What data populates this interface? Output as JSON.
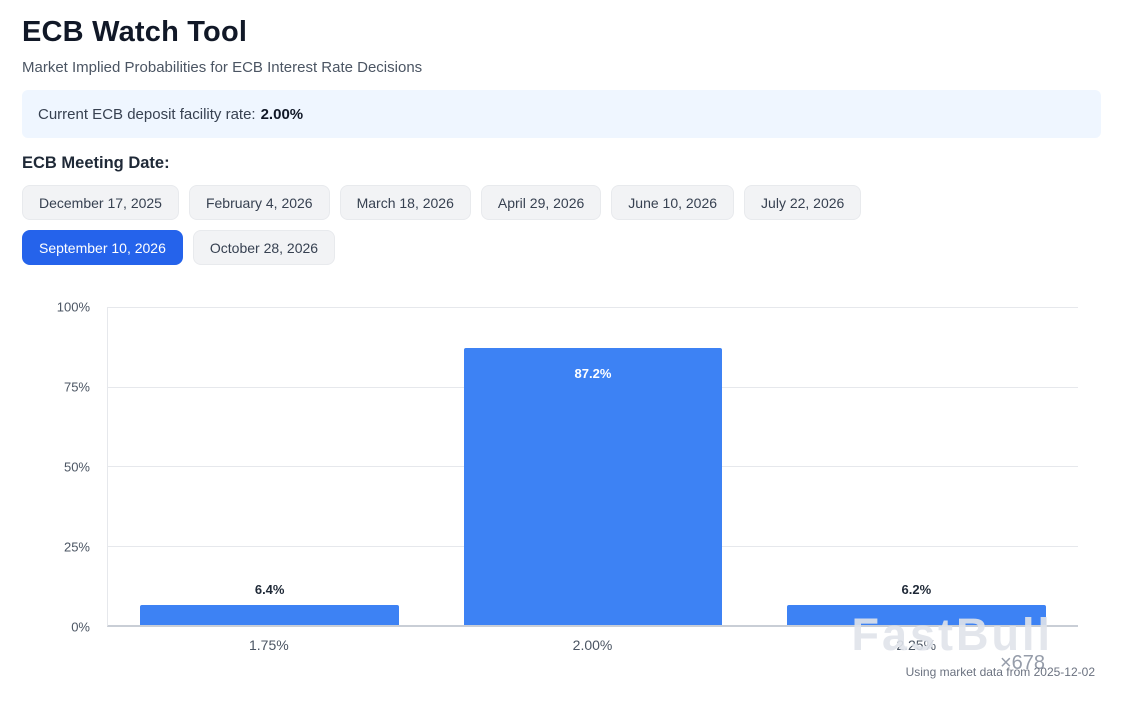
{
  "page": {
    "title": "ECB Watch Tool",
    "subtitle": "Market Implied Probabilities for ECB Interest Rate Decisions",
    "banner": {
      "label": "Current ECB deposit facility rate:",
      "rate": "2.00%"
    },
    "meeting_section_label": "ECB Meeting Date:",
    "meeting_dates": [
      {
        "label": "December 17, 2025",
        "selected": false
      },
      {
        "label": "February 4, 2026",
        "selected": false
      },
      {
        "label": "March 18, 2026",
        "selected": false
      },
      {
        "label": "April 29, 2026",
        "selected": false
      },
      {
        "label": "June 10, 2026",
        "selected": false
      },
      {
        "label": "July 22, 2026",
        "selected": false
      },
      {
        "label": "September 10, 2026",
        "selected": true
      },
      {
        "label": "October 28, 2026",
        "selected": false
      }
    ],
    "footer_note": "Using market data from 2025-12-02",
    "watermark": {
      "text": "FastBull",
      "sub": "×678"
    }
  },
  "colors": {
    "accent": "#2563eb",
    "bar": "#3d82f4",
    "banner_bg": "#eff6ff"
  },
  "chart_data": {
    "type": "bar",
    "title": "",
    "categories": [
      "1.75%",
      "2.00%",
      "2.25%"
    ],
    "values": [
      6.4,
      87.2,
      6.2
    ],
    "value_labels": [
      "6.4%",
      "87.2%",
      "6.2%"
    ],
    "xlabel": "",
    "ylabel": "",
    "ylim": [
      0,
      100
    ],
    "yticks": [
      0,
      25,
      50,
      75,
      100
    ],
    "ytick_labels": [
      "0%",
      "25%",
      "50%",
      "75%",
      "100%"
    ],
    "grid": true,
    "legend": false
  }
}
